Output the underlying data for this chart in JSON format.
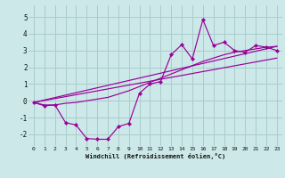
{
  "xlabel": "Windchill (Refroidissement éolien,°C)",
  "bg_color": "#cce8e8",
  "grid_color": "#aacccc",
  "line_color": "#990099",
  "xlim": [
    -0.5,
    23.5
  ],
  "ylim": [
    -2.7,
    5.7
  ],
  "xticks": [
    0,
    1,
    2,
    3,
    4,
    5,
    6,
    7,
    8,
    9,
    10,
    11,
    12,
    13,
    14,
    15,
    16,
    17,
    18,
    19,
    20,
    21,
    22,
    23
  ],
  "yticks": [
    -2,
    -1,
    0,
    1,
    2,
    3,
    4,
    5
  ],
  "line1_x": [
    0,
    1,
    2,
    3,
    4,
    5,
    6,
    7,
    8,
    9,
    10,
    11,
    12,
    13,
    14,
    15,
    16,
    17,
    18,
    19,
    20,
    21,
    22,
    23
  ],
  "line1_y": [
    -0.1,
    -0.25,
    -0.25,
    -0.15,
    -0.1,
    0.0,
    0.1,
    0.2,
    0.4,
    0.6,
    0.85,
    1.1,
    1.35,
    1.6,
    1.85,
    2.1,
    2.35,
    2.55,
    2.75,
    2.9,
    3.0,
    3.1,
    3.2,
    3.25
  ],
  "line2_x": [
    0,
    1,
    2,
    3,
    4,
    5,
    6,
    7,
    8,
    9,
    10,
    11,
    12,
    13,
    14,
    15,
    16,
    17,
    18,
    19,
    20,
    21,
    22,
    23
  ],
  "line2_y": [
    -0.1,
    -0.3,
    -0.25,
    -1.3,
    -1.45,
    -2.25,
    -2.3,
    -2.3,
    -1.55,
    -1.35,
    0.45,
    1.0,
    1.15,
    2.75,
    3.35,
    2.5,
    4.85,
    3.3,
    3.5,
    3.0,
    2.9,
    3.3,
    3.2,
    3.0
  ],
  "line3_x": [
    0,
    23
  ],
  "line3_y": [
    -0.1,
    3.25
  ],
  "line4_x": [
    0,
    23
  ],
  "line4_y": [
    -0.1,
    2.55
  ]
}
